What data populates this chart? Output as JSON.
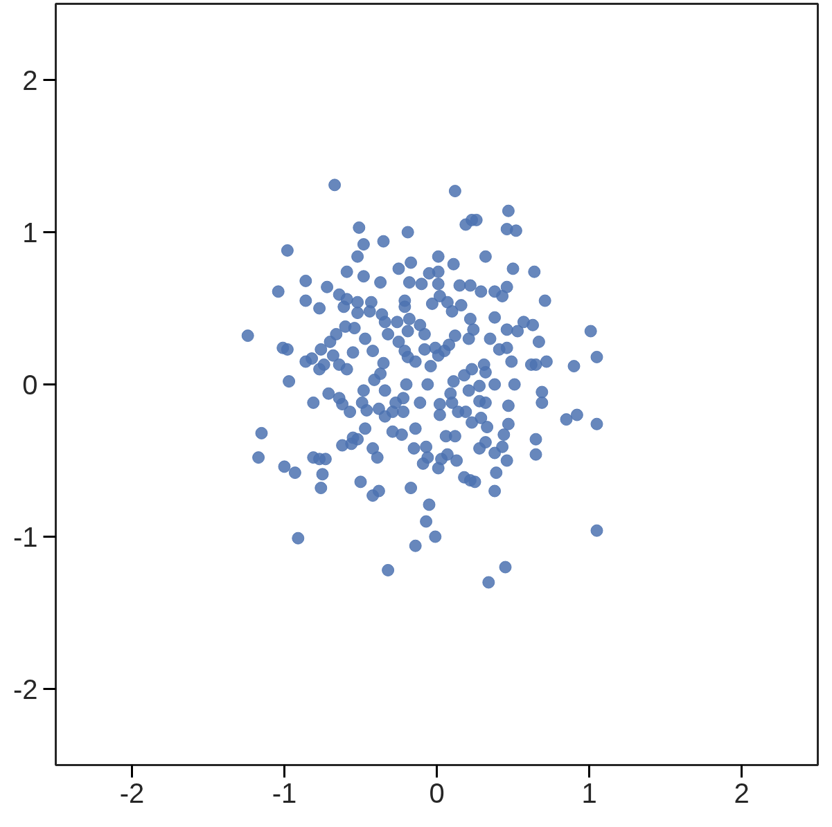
{
  "chart_data": {
    "type": "scatter",
    "xlim": [
      -2.5,
      2.5
    ],
    "ylim": [
      -2.5,
      2.5
    ],
    "xticks": [
      -2,
      -1,
      0,
      1,
      2
    ],
    "yticks": [
      -2,
      -1,
      0,
      1,
      2
    ],
    "grid": false,
    "marker": "circle",
    "series": [
      {
        "color": "#4c72b0",
        "x": [
          -0.67,
          0.12,
          0.47,
          0.19,
          0.23,
          0.26,
          0.46,
          0.52,
          -0.51,
          -0.19,
          -0.35,
          -0.48,
          -0.98,
          -0.52,
          0.01,
          0.32,
          -0.25,
          -0.17,
          0.11,
          0.5,
          0.64,
          -0.59,
          0.01,
          -0.05,
          -0.48,
          -0.86,
          -0.37,
          -0.18,
          -0.1,
          0.01,
          0.15,
          0.22,
          0.46,
          -1.04,
          -0.72,
          -0.64,
          0.29,
          0.38,
          0.43,
          0.02,
          0.71,
          -0.86,
          -0.59,
          -0.52,
          -0.43,
          -0.21,
          -0.03,
          0.07,
          0.16,
          -0.77,
          -0.61,
          -0.21,
          0.1,
          -0.52,
          -0.44,
          -0.36,
          0.38,
          0.22,
          0.57,
          0.63,
          -0.18,
          -0.34,
          -0.26,
          -0.6,
          -0.54,
          -0.11,
          0.46,
          0.53,
          0.24,
          1.01,
          -1.24,
          -0.66,
          -0.32,
          -0.19,
          -0.08,
          0.12,
          0.21,
          0.35,
          -0.47,
          -0.7,
          -0.25,
          0.67,
          0.08,
          -0.01,
          -0.08,
          0.41,
          0.46,
          -1.01,
          -0.98,
          -0.76,
          0.05,
          -0.42,
          -0.21,
          -0.19,
          -0.55,
          0.01,
          1.05,
          -0.14,
          0.49,
          0.72,
          -0.82,
          -0.86,
          -0.68,
          0.31,
          0.62,
          0.65,
          0.9,
          -0.35,
          -0.74,
          -0.64,
          -0.59,
          -0.77,
          -0.04,
          0.23,
          0.32,
          0.18,
          -0.37,
          0.11,
          -0.41,
          -0.97,
          -0.2,
          -0.06,
          0.38,
          0.51,
          0.28,
          0.21,
          -0.71,
          -0.48,
          -0.34,
          0.09,
          0.69,
          -0.64,
          -0.22,
          -0.27,
          -0.62,
          -0.81,
          -0.11,
          0.1,
          0.32,
          0.69,
          0.28,
          -0.49,
          -0.46,
          -0.38,
          -0.34,
          -0.29,
          -0.57,
          -0.22,
          0.02,
          0.02,
          0.14,
          0.19,
          0.47,
          0.29,
          1.05,
          0.85,
          0.92,
          0.47,
          0.23,
          0.33,
          -0.47,
          -0.14,
          -1.15,
          -0.29,
          -0.23,
          0.06,
          0.12,
          0.44,
          -0.55,
          -0.52,
          -0.56,
          0.32,
          0.65,
          -0.62,
          -0.15,
          -0.07,
          0.28,
          0.43,
          -0.42,
          0.07,
          0.38,
          -0.39,
          -0.06,
          0.65,
          -1.17,
          -0.81,
          -0.77,
          -0.73,
          0.03,
          0.13,
          0.46,
          -0.09,
          -1.0,
          0.01,
          -0.93,
          -0.75,
          0.39,
          -0.5,
          0.18,
          0.22,
          0.25,
          -0.17,
          -0.76,
          -0.38,
          -0.42,
          0.38,
          -0.05,
          -0.07,
          -0.01,
          -0.91,
          1.05,
          -0.14,
          0.45,
          -0.32,
          0.34
        ],
        "values": [
          1.31,
          1.27,
          1.14,
          1.05,
          1.08,
          1.08,
          1.02,
          1.01,
          1.03,
          1.0,
          0.94,
          0.92,
          0.88,
          0.84,
          0.84,
          0.84,
          0.76,
          0.8,
          0.79,
          0.76,
          0.74,
          0.74,
          0.74,
          0.73,
          0.71,
          0.68,
          0.67,
          0.67,
          0.66,
          0.66,
          0.65,
          0.65,
          0.64,
          0.61,
          0.64,
          0.59,
          0.61,
          0.61,
          0.58,
          0.58,
          0.55,
          0.55,
          0.56,
          0.54,
          0.54,
          0.55,
          0.53,
          0.54,
          0.52,
          0.5,
          0.51,
          0.51,
          0.48,
          0.47,
          0.48,
          0.46,
          0.44,
          0.43,
          0.41,
          0.39,
          0.43,
          0.41,
          0.41,
          0.38,
          0.37,
          0.39,
          0.36,
          0.35,
          0.36,
          0.35,
          0.32,
          0.33,
          0.33,
          0.35,
          0.33,
          0.32,
          0.3,
          0.3,
          0.3,
          0.28,
          0.28,
          0.28,
          0.26,
          0.24,
          0.23,
          0.23,
          0.24,
          0.24,
          0.23,
          0.23,
          0.22,
          0.22,
          0.22,
          0.18,
          0.21,
          0.19,
          0.18,
          0.15,
          0.15,
          0.15,
          0.17,
          0.15,
          0.19,
          0.13,
          0.13,
          0.13,
          0.12,
          0.14,
          0.13,
          0.13,
          0.1,
          0.1,
          0.12,
          0.1,
          0.08,
          0.06,
          0.07,
          0.02,
          0.03,
          0.02,
          0.0,
          0.0,
          0.0,
          0.0,
          -0.01,
          -0.04,
          -0.06,
          -0.04,
          -0.04,
          -0.06,
          -0.05,
          -0.09,
          -0.09,
          -0.12,
          -0.13,
          -0.12,
          -0.12,
          -0.12,
          -0.12,
          -0.12,
          -0.11,
          -0.12,
          -0.17,
          -0.16,
          -0.21,
          -0.18,
          -0.18,
          -0.18,
          -0.13,
          -0.2,
          -0.18,
          -0.18,
          -0.14,
          -0.22,
          -0.26,
          -0.23,
          -0.2,
          -0.26,
          -0.25,
          -0.28,
          -0.29,
          -0.29,
          -0.32,
          -0.31,
          -0.33,
          -0.34,
          -0.34,
          -0.33,
          -0.35,
          -0.36,
          -0.39,
          -0.38,
          -0.36,
          -0.4,
          -0.42,
          -0.41,
          -0.42,
          -0.41,
          -0.42,
          -0.46,
          -0.45,
          -0.48,
          -0.48,
          -0.46,
          -0.48,
          -0.48,
          -0.49,
          -0.49,
          -0.49,
          -0.5,
          -0.5,
          -0.52,
          -0.54,
          -0.55,
          -0.58,
          -0.59,
          -0.58,
          -0.64,
          -0.61,
          -0.63,
          -0.64,
          -0.68,
          -0.68,
          -0.7,
          -0.73,
          -0.7,
          -0.79,
          -0.9,
          -1.0,
          -1.01,
          -0.96,
          -1.06,
          -1.2,
          -1.22,
          -1.3
        ]
      }
    ]
  }
}
